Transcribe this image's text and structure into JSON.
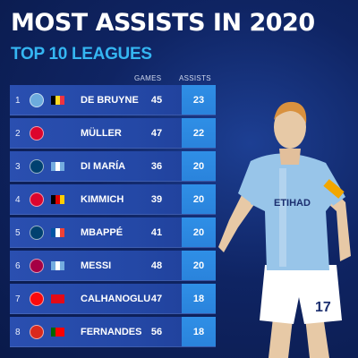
{
  "title": "MOST ASSISTS IN 2020",
  "subtitle": "TOP 10 LEAGUES",
  "columns": {
    "games": "GAMES",
    "assists": "ASSISTS"
  },
  "rows": [
    {
      "rank": "1",
      "name": "DE BRUYNE",
      "games": "45",
      "assists": "23",
      "club": "man-city-crest",
      "club_color": "#6cabdd",
      "flag": [
        "#000000",
        "#fdda24",
        "#ef3340"
      ]
    },
    {
      "rank": "2",
      "name": "MÜLLER",
      "games": "47",
      "assists": "22",
      "club": "bayern-crest",
      "club_color": "#dc052d",
      "flag": null
    },
    {
      "rank": "3",
      "name": "DI MARÍA",
      "games": "36",
      "assists": "20",
      "club": "psg-crest",
      "club_color": "#004170",
      "flag": [
        "#74acdf",
        "#ffffff",
        "#74acdf"
      ]
    },
    {
      "rank": "4",
      "name": "KIMMICH",
      "games": "39",
      "assists": "20",
      "club": "bayern-crest",
      "club_color": "#dc052d",
      "flag": [
        "#000000",
        "#dd0000",
        "#ffce00"
      ]
    },
    {
      "rank": "5",
      "name": "MBAPPÉ",
      "games": "41",
      "assists": "20",
      "club": "psg-crest",
      "club_color": "#004170",
      "flag": [
        "#0055a4",
        "#ffffff",
        "#ef4135"
      ]
    },
    {
      "rank": "6",
      "name": "MESSI",
      "games": "48",
      "assists": "20",
      "club": "barcelona-crest",
      "club_color": "#a50044",
      "flag": [
        "#74acdf",
        "#ffffff",
        "#74acdf"
      ]
    },
    {
      "rank": "7",
      "name": "CALHANOGLU",
      "games": "47",
      "assists": "18",
      "club": "milan-crest",
      "club_color": "#fb090b",
      "flag": [
        "#e30a17",
        "#e30a17",
        "#e30a17"
      ]
    },
    {
      "rank": "8",
      "name": "FERNANDES",
      "games": "56",
      "assists": "18",
      "club": "man-united-crest",
      "club_color": "#da291c",
      "flag": [
        "#006600",
        "#ff0000",
        "#ff0000"
      ]
    }
  ]
}
